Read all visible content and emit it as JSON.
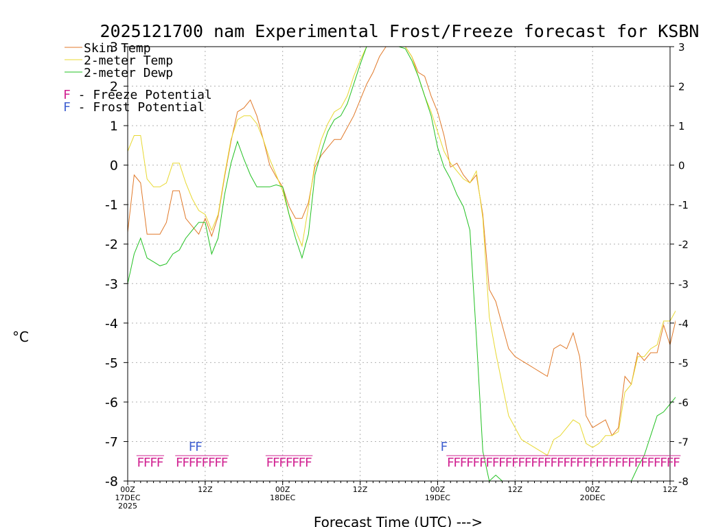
{
  "chart_data": {
    "type": "line",
    "title": "2025121700 nam Experimental Frost/Freeze forecast for KSBN",
    "ylabel": "°C",
    "xlabel": "Forecast Time (UTC) --->",
    "ylim": [
      -8,
      3
    ],
    "yticks": [
      -8,
      -7,
      -6,
      -5,
      -4,
      -3,
      -2,
      -1,
      0,
      1,
      2,
      3
    ],
    "xlim": [
      0,
      84
    ],
    "xticks": [
      {
        "x": 0,
        "line1": "00Z",
        "line2": "17DEC",
        "line3": "2025"
      },
      {
        "x": 12,
        "line1": "12Z",
        "line2": "",
        "line3": ""
      },
      {
        "x": 24,
        "line1": "00Z",
        "line2": "18DEC",
        "line3": ""
      },
      {
        "x": 36,
        "line1": "12Z",
        "line2": "",
        "line3": ""
      },
      {
        "x": 48,
        "line1": "00Z",
        "line2": "19DEC",
        "line3": ""
      },
      {
        "x": 60,
        "line1": "12Z",
        "line2": "",
        "line3": ""
      },
      {
        "x": 72,
        "line1": "00Z",
        "line2": "20DEC",
        "line3": ""
      },
      {
        "x": 84,
        "line1": "12Z",
        "line2": "",
        "line3": ""
      }
    ],
    "grid": true,
    "legend_position": "top-left",
    "series": [
      {
        "name": "Skin Temp",
        "color": "#e07828",
        "points": [
          [
            0,
            -1.7
          ],
          [
            1,
            -0.25
          ],
          [
            2,
            -0.45
          ],
          [
            3,
            -1.75
          ],
          [
            4,
            -1.75
          ],
          [
            5,
            -1.75
          ],
          [
            6,
            -1.45
          ],
          [
            7,
            -0.65
          ],
          [
            8,
            -0.65
          ],
          [
            9,
            -1.35
          ],
          [
            10,
            -1.55
          ],
          [
            11,
            -1.75
          ],
          [
            12,
            -1.35
          ],
          [
            13,
            -1.8
          ],
          [
            14,
            -1.3
          ],
          [
            15,
            -0.3
          ],
          [
            16,
            0.6
          ],
          [
            17,
            1.35
          ],
          [
            18,
            1.45
          ],
          [
            19,
            1.65
          ],
          [
            20,
            1.25
          ],
          [
            21,
            0.65
          ],
          [
            22,
            0.0
          ],
          [
            23,
            -0.3
          ],
          [
            24,
            -0.55
          ],
          [
            25,
            -1.05
          ],
          [
            26,
            -1.35
          ],
          [
            27,
            -1.35
          ],
          [
            28,
            -0.95
          ],
          [
            29,
            -0.05
          ],
          [
            30,
            0.25
          ],
          [
            31,
            0.45
          ],
          [
            32,
            0.65
          ],
          [
            33,
            0.65
          ],
          [
            34,
            0.95
          ],
          [
            35,
            1.25
          ],
          [
            36,
            1.65
          ],
          [
            37,
            2.05
          ],
          [
            38,
            2.35
          ],
          [
            39,
            2.75
          ],
          [
            40,
            3.0
          ],
          [
            43,
            3.0
          ],
          [
            44,
            2.75
          ],
          [
            45,
            2.35
          ],
          [
            46,
            2.25
          ],
          [
            47,
            1.75
          ],
          [
            48,
            1.35
          ],
          [
            49,
            0.75
          ],
          [
            50,
            -0.05
          ],
          [
            51,
            0.05
          ],
          [
            52,
            -0.25
          ],
          [
            53,
            -0.45
          ],
          [
            54,
            -0.25
          ],
          [
            55,
            -1.25
          ],
          [
            56,
            -3.15
          ],
          [
            57,
            -3.45
          ],
          [
            58,
            -4.05
          ],
          [
            59,
            -4.65
          ],
          [
            60,
            -4.85
          ],
          [
            61,
            -4.95
          ],
          [
            62,
            -5.05
          ],
          [
            63,
            -5.15
          ],
          [
            64,
            -5.25
          ],
          [
            65,
            -5.35
          ],
          [
            66,
            -4.65
          ],
          [
            67,
            -4.55
          ],
          [
            68,
            -4.65
          ],
          [
            69,
            -4.25
          ],
          [
            70,
            -4.85
          ],
          [
            71,
            -6.35
          ],
          [
            72,
            -6.65
          ],
          [
            73,
            -6.55
          ],
          [
            74,
            -6.45
          ],
          [
            75,
            -6.85
          ],
          [
            76,
            -6.65
          ],
          [
            77,
            -5.35
          ],
          [
            78,
            -5.55
          ],
          [
            79,
            -4.75
          ],
          [
            80,
            -4.95
          ],
          [
            81,
            -4.75
          ],
          [
            82,
            -4.75
          ],
          [
            83,
            -4.05
          ],
          [
            84,
            -4.55
          ],
          [
            85,
            -3.85
          ]
        ]
      },
      {
        "name": "2-meter Temp",
        "color": "#e8d830",
        "points": [
          [
            0,
            0.35
          ],
          [
            1,
            0.75
          ],
          [
            2,
            0.75
          ],
          [
            3,
            -0.35
          ],
          [
            4,
            -0.55
          ],
          [
            5,
            -0.55
          ],
          [
            6,
            -0.45
          ],
          [
            7,
            0.05
          ],
          [
            8,
            0.05
          ],
          [
            9,
            -0.45
          ],
          [
            10,
            -0.85
          ],
          [
            11,
            -1.15
          ],
          [
            12,
            -1.25
          ],
          [
            13,
            -1.65
          ],
          [
            14,
            -1.25
          ],
          [
            15,
            -0.25
          ],
          [
            16,
            0.65
          ],
          [
            17,
            1.15
          ],
          [
            18,
            1.25
          ],
          [
            19,
            1.25
          ],
          [
            20,
            1.05
          ],
          [
            21,
            0.65
          ],
          [
            22,
            0.15
          ],
          [
            23,
            -0.25
          ],
          [
            24,
            -0.65
          ],
          [
            25,
            -1.25
          ],
          [
            26,
            -1.65
          ],
          [
            27,
            -2.05
          ],
          [
            28,
            -1.05
          ],
          [
            29,
            0.05
          ],
          [
            30,
            0.65
          ],
          [
            31,
            1.05
          ],
          [
            32,
            1.35
          ],
          [
            33,
            1.45
          ],
          [
            34,
            1.75
          ],
          [
            35,
            2.25
          ],
          [
            36,
            2.65
          ],
          [
            37,
            3.0
          ],
          [
            43,
            3.0
          ],
          [
            44,
            2.75
          ],
          [
            45,
            2.25
          ],
          [
            46,
            1.75
          ],
          [
            47,
            1.35
          ],
          [
            48,
            0.85
          ],
          [
            49,
            0.35
          ],
          [
            50,
            0.05
          ],
          [
            51,
            -0.15
          ],
          [
            52,
            -0.35
          ],
          [
            53,
            -0.45
          ],
          [
            54,
            -0.15
          ],
          [
            55,
            -1.35
          ],
          [
            56,
            -3.85
          ],
          [
            57,
            -4.75
          ],
          [
            58,
            -5.55
          ],
          [
            59,
            -6.35
          ],
          [
            60,
            -6.65
          ],
          [
            61,
            -6.95
          ],
          [
            62,
            -7.05
          ],
          [
            63,
            -7.15
          ],
          [
            64,
            -7.25
          ],
          [
            65,
            -7.35
          ],
          [
            66,
            -6.95
          ],
          [
            67,
            -6.85
          ],
          [
            68,
            -6.65
          ],
          [
            69,
            -6.45
          ],
          [
            70,
            -6.55
          ],
          [
            71,
            -7.05
          ],
          [
            72,
            -7.15
          ],
          [
            73,
            -7.05
          ],
          [
            74,
            -6.85
          ],
          [
            75,
            -6.85
          ],
          [
            76,
            -6.75
          ],
          [
            77,
            -5.75
          ],
          [
            78,
            -5.55
          ],
          [
            79,
            -4.85
          ],
          [
            80,
            -4.85
          ],
          [
            81,
            -4.65
          ],
          [
            82,
            -4.55
          ],
          [
            83,
            -3.95
          ],
          [
            84,
            -3.95
          ],
          [
            85,
            -3.65
          ]
        ]
      },
      {
        "name": "2-meter Dewp",
        "color": "#20c020",
        "points": [
          [
            0,
            -3.0
          ],
          [
            1,
            -2.25
          ],
          [
            2,
            -1.85
          ],
          [
            3,
            -2.35
          ],
          [
            4,
            -2.45
          ],
          [
            5,
            -2.55
          ],
          [
            6,
            -2.5
          ],
          [
            7,
            -2.25
          ],
          [
            8,
            -2.15
          ],
          [
            9,
            -1.85
          ],
          [
            10,
            -1.65
          ],
          [
            11,
            -1.45
          ],
          [
            12,
            -1.45
          ],
          [
            13,
            -2.25
          ],
          [
            14,
            -1.85
          ],
          [
            15,
            -0.75
          ],
          [
            16,
            0.05
          ],
          [
            17,
            0.6
          ],
          [
            18,
            0.15
          ],
          [
            19,
            -0.25
          ],
          [
            20,
            -0.55
          ],
          [
            21,
            -0.55
          ],
          [
            22,
            -0.55
          ],
          [
            23,
            -0.5
          ],
          [
            24,
            -0.55
          ],
          [
            25,
            -1.25
          ],
          [
            26,
            -1.85
          ],
          [
            27,
            -2.35
          ],
          [
            28,
            -1.75
          ],
          [
            29,
            -0.25
          ],
          [
            30,
            0.35
          ],
          [
            31,
            0.85
          ],
          [
            32,
            1.15
          ],
          [
            33,
            1.25
          ],
          [
            34,
            1.55
          ],
          [
            35,
            2.05
          ],
          [
            36,
            2.55
          ],
          [
            37,
            3.0
          ],
          [
            42,
            3.0
          ],
          [
            43,
            2.95
          ],
          [
            44,
            2.65
          ],
          [
            45,
            2.25
          ],
          [
            46,
            1.75
          ],
          [
            47,
            1.25
          ],
          [
            48,
            0.45
          ],
          [
            49,
            -0.05
          ],
          [
            50,
            -0.35
          ],
          [
            51,
            -0.75
          ],
          [
            52,
            -1.05
          ],
          [
            53,
            -1.65
          ],
          [
            54,
            -4.35
          ],
          [
            55,
            -7.25
          ],
          [
            56,
            -8.0
          ],
          [
            57,
            -7.85
          ],
          [
            58,
            -8.0
          ],
          [
            78,
            -8.0
          ],
          [
            79,
            -7.65
          ],
          [
            80,
            -7.35
          ],
          [
            81,
            -6.85
          ],
          [
            82,
            -6.35
          ],
          [
            83,
            -6.25
          ],
          [
            84,
            -6.05
          ],
          [
            85,
            -5.85
          ]
        ]
      }
    ],
    "freeze_potential": {
      "label": "F",
      "color": "#d02090",
      "hours": [
        2,
        3,
        4,
        5,
        8,
        9,
        10,
        11,
        12,
        13,
        14,
        15,
        22,
        23,
        24,
        25,
        26,
        27,
        28,
        50,
        51,
        52,
        53,
        54,
        55,
        56,
        57,
        58,
        59,
        60,
        61,
        62,
        63,
        64,
        65,
        66,
        67,
        68,
        69,
        70,
        71,
        72,
        73,
        74,
        75,
        76,
        77,
        78,
        79,
        80,
        81,
        82,
        83,
        84,
        85
      ]
    },
    "frost_potential": {
      "label": "F",
      "color": "#4060d0",
      "hours": [
        10,
        11,
        49
      ]
    }
  },
  "legend": {
    "skin_temp": "Skin Temp",
    "two_meter_temp": "2-meter Temp",
    "two_meter_dewp": "2-meter Dewp",
    "freeze_letter": "F",
    "freeze_text": " - Freeze Potential",
    "frost_letter": "F",
    "frost_text": " - Frost Potential"
  }
}
